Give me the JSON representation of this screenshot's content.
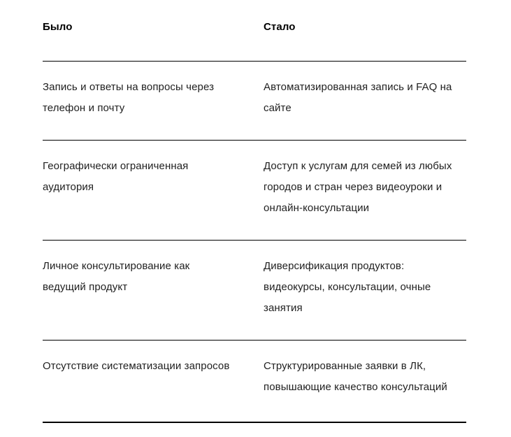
{
  "colors": {
    "header_text": "#000000",
    "body_text": "#212121",
    "divider": "#000000",
    "background": "#ffffff"
  },
  "table": {
    "headers": {
      "before": "Было",
      "after": "Стало"
    },
    "rows": [
      {
        "before": "Запись и ответы на вопросы через\nтелефон и почту",
        "after": "Автоматизированная запись и FAQ на\nсайте"
      },
      {
        "before": "Географически ограниченная\nаудитория",
        "after": "Доступ к услугам для семей из любых\nгородов и стран через видеоуроки и\nонлайн-консультации"
      },
      {
        "before": "Личное консультирование как\nведущий продукт",
        "after": "Диверсификация продуктов:\nвидеокурсы, консультации, очные\nзанятия"
      },
      {
        "before": "Отсутствие систематизации запросов",
        "after": "Структурированные заявки в ЛК,\nповышающие качество консультаций"
      }
    ]
  }
}
